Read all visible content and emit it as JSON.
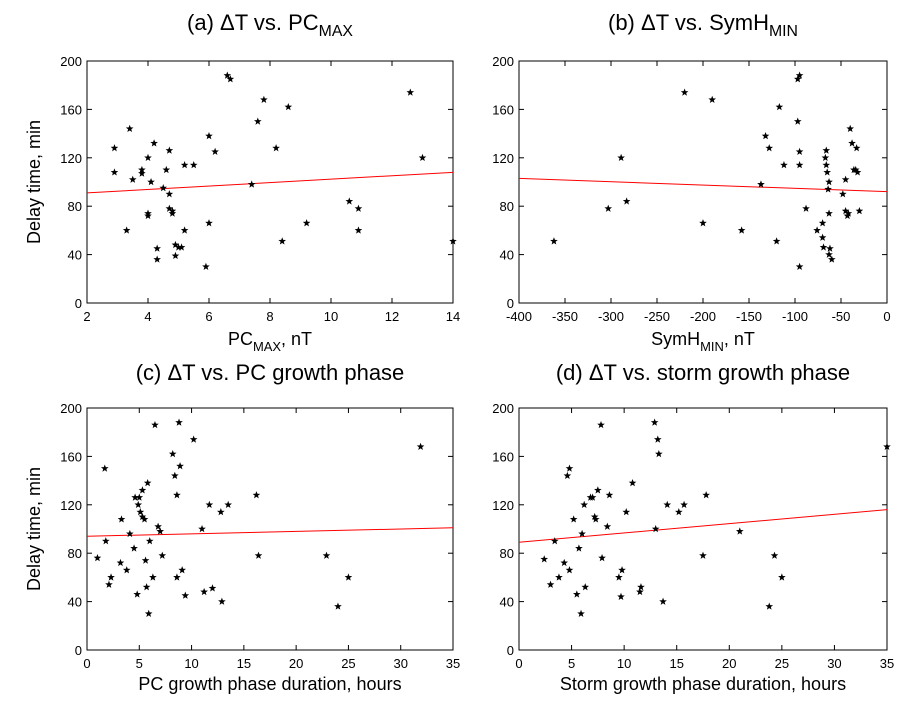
{
  "chart_data": [
    {
      "type": "scatter",
      "title": "(a) ΔT  vs. PC",
      "title_sub": "MAX",
      "xlabel": "PC",
      "xlabel_sub": "MAX",
      "xlabel_suffix": ",  nT",
      "ylabel": "Delay time,  min",
      "xlim": [
        2,
        14
      ],
      "xticks": [
        2,
        4,
        6,
        8,
        10,
        12,
        14
      ],
      "ylim": [
        0,
        200
      ],
      "yticks": [
        0,
        40,
        80,
        120,
        160,
        200
      ],
      "color": "#000000",
      "x": [
        2.9,
        2.9,
        3.3,
        3.4,
        3.5,
        3.8,
        3.8,
        4.0,
        4.0,
        4.0,
        4.1,
        4.2,
        4.3,
        4.3,
        4.5,
        4.6,
        4.7,
        4.7,
        4.7,
        4.8,
        4.8,
        4.9,
        4.9,
        5.0,
        5.1,
        5.2,
        5.2,
        5.5,
        5.9,
        6.0,
        6.0,
        6.2,
        6.6,
        6.7,
        7.4,
        7.6,
        7.8,
        8.2,
        8.4,
        8.6,
        9.2,
        10.6,
        10.9,
        10.9,
        12.6,
        13.0,
        14.0
      ],
      "values": [
        128,
        108,
        60,
        144,
        102,
        110,
        107,
        120,
        74,
        72,
        100,
        132,
        45,
        36,
        95,
        110,
        126,
        90,
        78,
        74,
        76,
        39,
        48,
        46,
        46,
        114,
        60,
        114,
        30,
        66,
        138,
        125,
        188,
        185,
        98,
        150,
        168,
        128,
        51,
        162,
        66,
        84,
        78,
        60,
        174,
        120,
        51
      ],
      "fit": {
        "color": "#ff0000",
        "x": [
          2,
          14
        ],
        "y": [
          91,
          108
        ]
      }
    },
    {
      "type": "scatter",
      "title": "(b) ΔT  vs.  SymH",
      "title_sub": "MIN",
      "xlabel": "SymH",
      "xlabel_sub": "MIN",
      "xlabel_suffix": ",  nT",
      "xlim": [
        -400,
        0
      ],
      "xticks": [
        -400,
        -350,
        -300,
        -250,
        -200,
        -150,
        -100,
        -50,
        0
      ],
      "ylim": [
        0,
        200
      ],
      "yticks": [
        0,
        40,
        80,
        120,
        160,
        200
      ],
      "color": "#000000",
      "x": [
        -362,
        -303,
        -289,
        -283,
        -220,
        -190,
        -200,
        -158,
        -137,
        -132,
        -128,
        -120,
        -117,
        -112,
        -97,
        -95,
        -97,
        -95,
        -95,
        -95,
        -88,
        -76,
        -70,
        -70,
        -69,
        -67,
        -66,
        -66,
        -65,
        -64,
        -63,
        -63,
        -63,
        -62,
        -60,
        -48,
        -45,
        -45,
        -43,
        -42,
        -40,
        -38,
        -36,
        -34,
        -33,
        -32,
        -30
      ],
      "values": [
        51,
        78,
        120,
        84,
        174,
        168,
        66,
        60,
        98,
        138,
        128,
        51,
        162,
        114,
        185,
        188,
        150,
        125,
        114,
        30,
        78,
        60,
        66,
        54,
        46,
        120,
        126,
        114,
        108,
        94,
        100,
        74,
        40,
        45,
        36,
        90,
        102,
        76,
        72,
        74,
        144,
        132,
        110,
        110,
        128,
        108,
        76
      ],
      "fit": {
        "color": "#ff0000",
        "x": [
          -400,
          0
        ],
        "y": [
          103,
          92
        ]
      }
    },
    {
      "type": "scatter",
      "title": "(c) ΔT vs. PC growth phase",
      "xlabel": "PC growth phase duration, hours",
      "ylabel": "Delay time,  min",
      "xlim": [
        0,
        35
      ],
      "xticks": [
        0,
        5,
        10,
        15,
        20,
        25,
        30,
        35
      ],
      "ylim": [
        0,
        200
      ],
      "yticks": [
        0,
        40,
        80,
        120,
        160,
        200
      ],
      "color": "#000000",
      "x": [
        1.0,
        1.7,
        1.8,
        2.1,
        2.3,
        3.2,
        3.3,
        3.8,
        4.1,
        4.5,
        4.6,
        4.8,
        4.9,
        5.0,
        5.1,
        5.3,
        5.3,
        5.5,
        5.6,
        5.7,
        5.8,
        5.9,
        6.0,
        6.3,
        6.5,
        6.8,
        7.0,
        7.2,
        8.2,
        8.4,
        8.6,
        8.6,
        8.8,
        8.9,
        9.1,
        9.4,
        10.2,
        11.0,
        11.2,
        11.7,
        12.0,
        12.8,
        12.9,
        13.5,
        16.2,
        16.4,
        22.9,
        24.0,
        25.0,
        31.9
      ],
      "values": [
        76,
        150,
        90,
        54,
        60,
        72,
        108,
        66,
        96,
        84,
        126,
        46,
        120,
        126,
        114,
        132,
        110,
        108,
        74,
        52,
        138,
        30,
        90,
        60,
        186,
        102,
        98,
        78,
        162,
        144,
        128,
        60,
        188,
        152,
        66,
        45,
        174,
        100,
        48,
        120,
        51,
        114,
        40,
        120,
        128,
        78,
        78,
        36,
        60,
        168
      ],
      "fit": {
        "color": "#ff0000",
        "x": [
          0,
          35
        ],
        "y": [
          94,
          101
        ]
      }
    },
    {
      "type": "scatter",
      "title": "(d) ΔT vs. storm growth phase",
      "xlabel": "Storm growth phase duration,  hours",
      "xlim": [
        0,
        35
      ],
      "xticks": [
        0,
        5,
        10,
        15,
        20,
        25,
        30,
        35
      ],
      "ylim": [
        0,
        200
      ],
      "yticks": [
        0,
        40,
        80,
        120,
        160,
        200
      ],
      "color": "#000000",
      "x": [
        2.4,
        3.0,
        3.4,
        3.8,
        4.3,
        4.6,
        4.8,
        4.8,
        5.2,
        5.5,
        5.7,
        5.9,
        6.0,
        6.2,
        6.3,
        6.8,
        7.0,
        7.2,
        7.3,
        7.5,
        7.8,
        7.9,
        8.4,
        8.6,
        9.5,
        9.7,
        9.8,
        10.2,
        10.8,
        11.5,
        11.6,
        12.9,
        13.0,
        13.2,
        13.3,
        13.7,
        14.1,
        15.2,
        15.7,
        17.5,
        17.8,
        21,
        23.8,
        24.3,
        25,
        35
      ],
      "values": [
        75,
        54,
        90,
        60,
        72,
        144,
        150,
        66,
        108,
        46,
        84,
        30,
        96,
        120,
        52,
        126,
        126,
        110,
        108,
        132,
        186,
        76,
        102,
        128,
        60,
        44,
        66,
        114,
        138,
        48,
        52,
        188,
        100,
        174,
        162,
        40,
        120,
        114,
        120,
        78,
        128,
        98,
        36,
        78,
        60,
        168
      ],
      "fit": {
        "color": "#ff0000",
        "x": [
          0,
          35
        ],
        "y": [
          89,
          116
        ]
      }
    }
  ]
}
